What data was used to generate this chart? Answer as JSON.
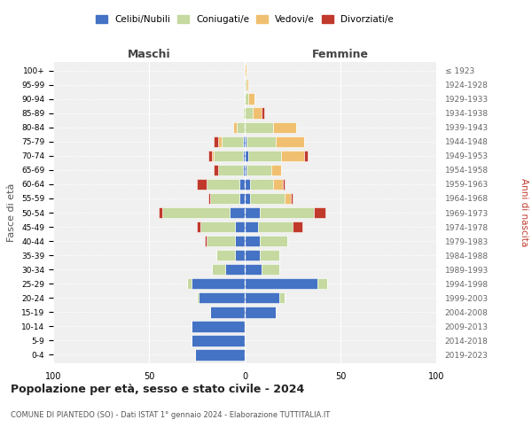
{
  "age_groups": [
    "0-4",
    "5-9",
    "10-14",
    "15-19",
    "20-24",
    "25-29",
    "30-34",
    "35-39",
    "40-44",
    "45-49",
    "50-54",
    "55-59",
    "60-64",
    "65-69",
    "70-74",
    "75-79",
    "80-84",
    "85-89",
    "90-94",
    "95-99",
    "100+"
  ],
  "birth_years": [
    "2019-2023",
    "2014-2018",
    "2009-2013",
    "2004-2008",
    "1999-2003",
    "1994-1998",
    "1989-1993",
    "1984-1988",
    "1979-1983",
    "1974-1978",
    "1969-1973",
    "1964-1968",
    "1959-1963",
    "1954-1958",
    "1949-1953",
    "1944-1948",
    "1939-1943",
    "1934-1938",
    "1929-1933",
    "1924-1928",
    "≤ 1923"
  ],
  "colors": {
    "celibi": "#4472c4",
    "coniugati": "#c5d9a0",
    "vedovi": "#f0c070",
    "divorziati": "#c0392b"
  },
  "male": {
    "celibi": [
      26,
      28,
      28,
      18,
      24,
      28,
      10,
      5,
      5,
      5,
      8,
      3,
      3,
      1,
      1,
      1,
      0,
      0,
      0,
      0,
      0
    ],
    "coniugati": [
      0,
      0,
      0,
      0,
      1,
      2,
      7,
      10,
      15,
      18,
      35,
      15,
      17,
      13,
      15,
      11,
      4,
      1,
      0,
      0,
      0
    ],
    "vedovi": [
      0,
      0,
      0,
      0,
      0,
      0,
      0,
      0,
      0,
      0,
      0,
      0,
      0,
      0,
      1,
      2,
      2,
      0,
      0,
      0,
      0
    ],
    "divorziati": [
      0,
      0,
      0,
      0,
      0,
      0,
      0,
      0,
      1,
      2,
      2,
      1,
      5,
      2,
      2,
      2,
      0,
      0,
      0,
      0,
      0
    ]
  },
  "female": {
    "celibi": [
      0,
      0,
      0,
      16,
      18,
      38,
      9,
      8,
      8,
      7,
      8,
      3,
      3,
      1,
      2,
      1,
      0,
      0,
      0,
      0,
      0
    ],
    "coniugati": [
      0,
      0,
      0,
      0,
      3,
      5,
      9,
      10,
      14,
      18,
      28,
      18,
      12,
      13,
      17,
      15,
      15,
      4,
      2,
      1,
      0
    ],
    "vedovi": [
      0,
      0,
      0,
      0,
      0,
      0,
      0,
      0,
      0,
      0,
      0,
      3,
      5,
      5,
      12,
      15,
      12,
      5,
      3,
      1,
      1
    ],
    "divorziati": [
      0,
      0,
      0,
      0,
      0,
      0,
      0,
      0,
      0,
      5,
      6,
      1,
      1,
      0,
      2,
      0,
      0,
      1,
      0,
      0,
      0
    ]
  },
  "title": "Popolazione per età, sesso e stato civile - 2024",
  "subtitle": "COMUNE DI PIANTEDO (SO) - Dati ISTAT 1° gennaio 2024 - Elaborazione TUTTITALIA.IT",
  "xlabel_left": "Maschi",
  "xlabel_right": "Femmine",
  "ylabel_left": "Fasce di età",
  "ylabel_right": "Anni di nascita",
  "xlim": 100,
  "legend_labels": [
    "Celibi/Nubili",
    "Coniugati/e",
    "Vedovi/e",
    "Divorziati/e"
  ],
  "background_color": "#ffffff",
  "grid_color": "#cccccc"
}
